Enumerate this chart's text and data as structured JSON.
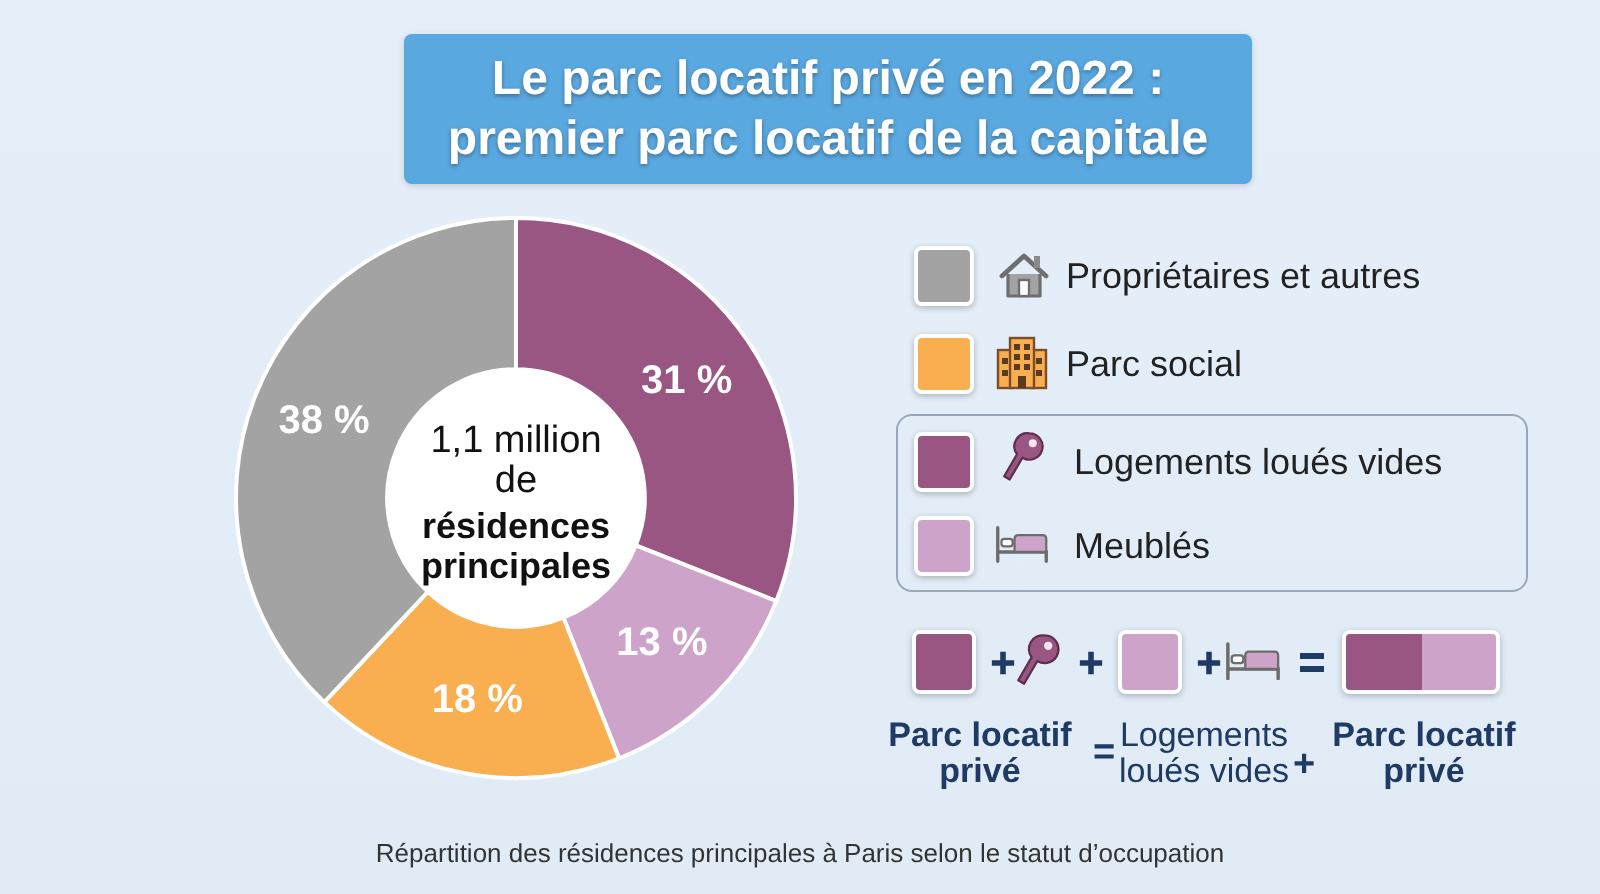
{
  "chart_data": {
    "type": "donut",
    "title": "Le parc locatif privé en 2022 : premier parc locatif de la capitale",
    "categories": [
      "Logements loués vides",
      "Meublés",
      "Parc social",
      "Propriétaires et autres"
    ],
    "values": [
      31,
      13,
      18,
      38
    ],
    "colors": [
      "#9a5683",
      "#cea3ca",
      "#f9ae50",
      "#a3a3a3"
    ],
    "value_labels": [
      "31 %",
      "13 %",
      "18 %",
      "38 %"
    ],
    "legend": "right",
    "annotations": [
      "1,1 million de",
      "résidences principales",
      "Parc locatif privé",
      "=",
      "Logements loués vides",
      "+",
      "Parc locatif privé",
      "Répartition des résidences principales à Paris selon le statut d’occupation"
    ]
  }
}
